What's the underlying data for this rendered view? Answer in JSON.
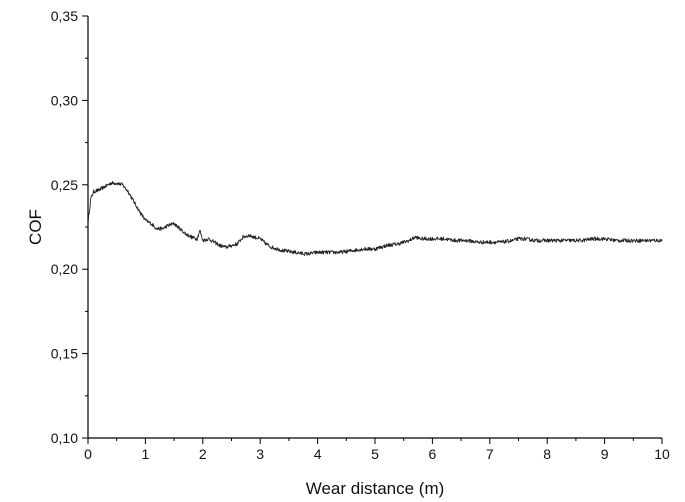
{
  "chart_data": {
    "type": "line",
    "title": "",
    "xlabel": "Wear distance (m)",
    "ylabel": "COF",
    "xlim": [
      0,
      10
    ],
    "ylim": [
      0.1,
      0.35
    ],
    "x_ticks": [
      0,
      1,
      2,
      3,
      4,
      5,
      6,
      7,
      8,
      9,
      10
    ],
    "x_tick_labels": [
      "0",
      "1",
      "2",
      "3",
      "4",
      "5",
      "6",
      "7",
      "8",
      "9",
      "10"
    ],
    "y_ticks": [
      0.1,
      0.15,
      0.2,
      0.25,
      0.3,
      0.35
    ],
    "y_tick_labels": [
      "0,10",
      "0,15",
      "0,20",
      "0,25",
      "0,30",
      "0,35"
    ],
    "grid": false,
    "legend": "none",
    "line_color": "#222222",
    "series": [
      {
        "x": [
          0,
          0.05,
          0.1,
          0.2,
          0.3,
          0.4,
          0.5,
          0.6,
          0.7,
          0.8,
          0.9,
          1.0,
          1.1,
          1.2,
          1.3,
          1.4,
          1.5,
          1.6,
          1.7,
          1.8,
          1.9,
          1.95,
          2.0,
          2.1,
          2.2,
          2.3,
          2.4,
          2.5,
          2.6,
          2.7,
          2.8,
          2.9,
          3.0,
          3.1,
          3.2,
          3.4,
          3.6,
          3.8,
          4.0,
          4.2,
          4.4,
          4.6,
          4.8,
          5.0,
          5.2,
          5.4,
          5.6,
          5.7,
          5.8,
          6.0,
          6.2,
          6.4,
          6.6,
          6.8,
          7.0,
          7.2,
          7.4,
          7.5,
          7.6,
          7.8,
          8.0,
          8.2,
          8.4,
          8.6,
          8.8,
          9.0,
          9.2,
          9.4,
          9.6,
          9.8,
          10.0
        ],
        "values": [
          0.228,
          0.242,
          0.246,
          0.247,
          0.249,
          0.251,
          0.251,
          0.25,
          0.246,
          0.24,
          0.234,
          0.229,
          0.227,
          0.224,
          0.224,
          0.226,
          0.227,
          0.224,
          0.221,
          0.219,
          0.218,
          0.223,
          0.217,
          0.218,
          0.216,
          0.214,
          0.213,
          0.214,
          0.215,
          0.219,
          0.22,
          0.219,
          0.218,
          0.215,
          0.213,
          0.211,
          0.21,
          0.209,
          0.21,
          0.21,
          0.21,
          0.211,
          0.212,
          0.212,
          0.214,
          0.215,
          0.217,
          0.219,
          0.218,
          0.218,
          0.218,
          0.217,
          0.217,
          0.216,
          0.216,
          0.216,
          0.217,
          0.218,
          0.218,
          0.217,
          0.217,
          0.217,
          0.217,
          0.217,
          0.218,
          0.218,
          0.217,
          0.217,
          0.217,
          0.217,
          0.217
        ]
      }
    ]
  }
}
